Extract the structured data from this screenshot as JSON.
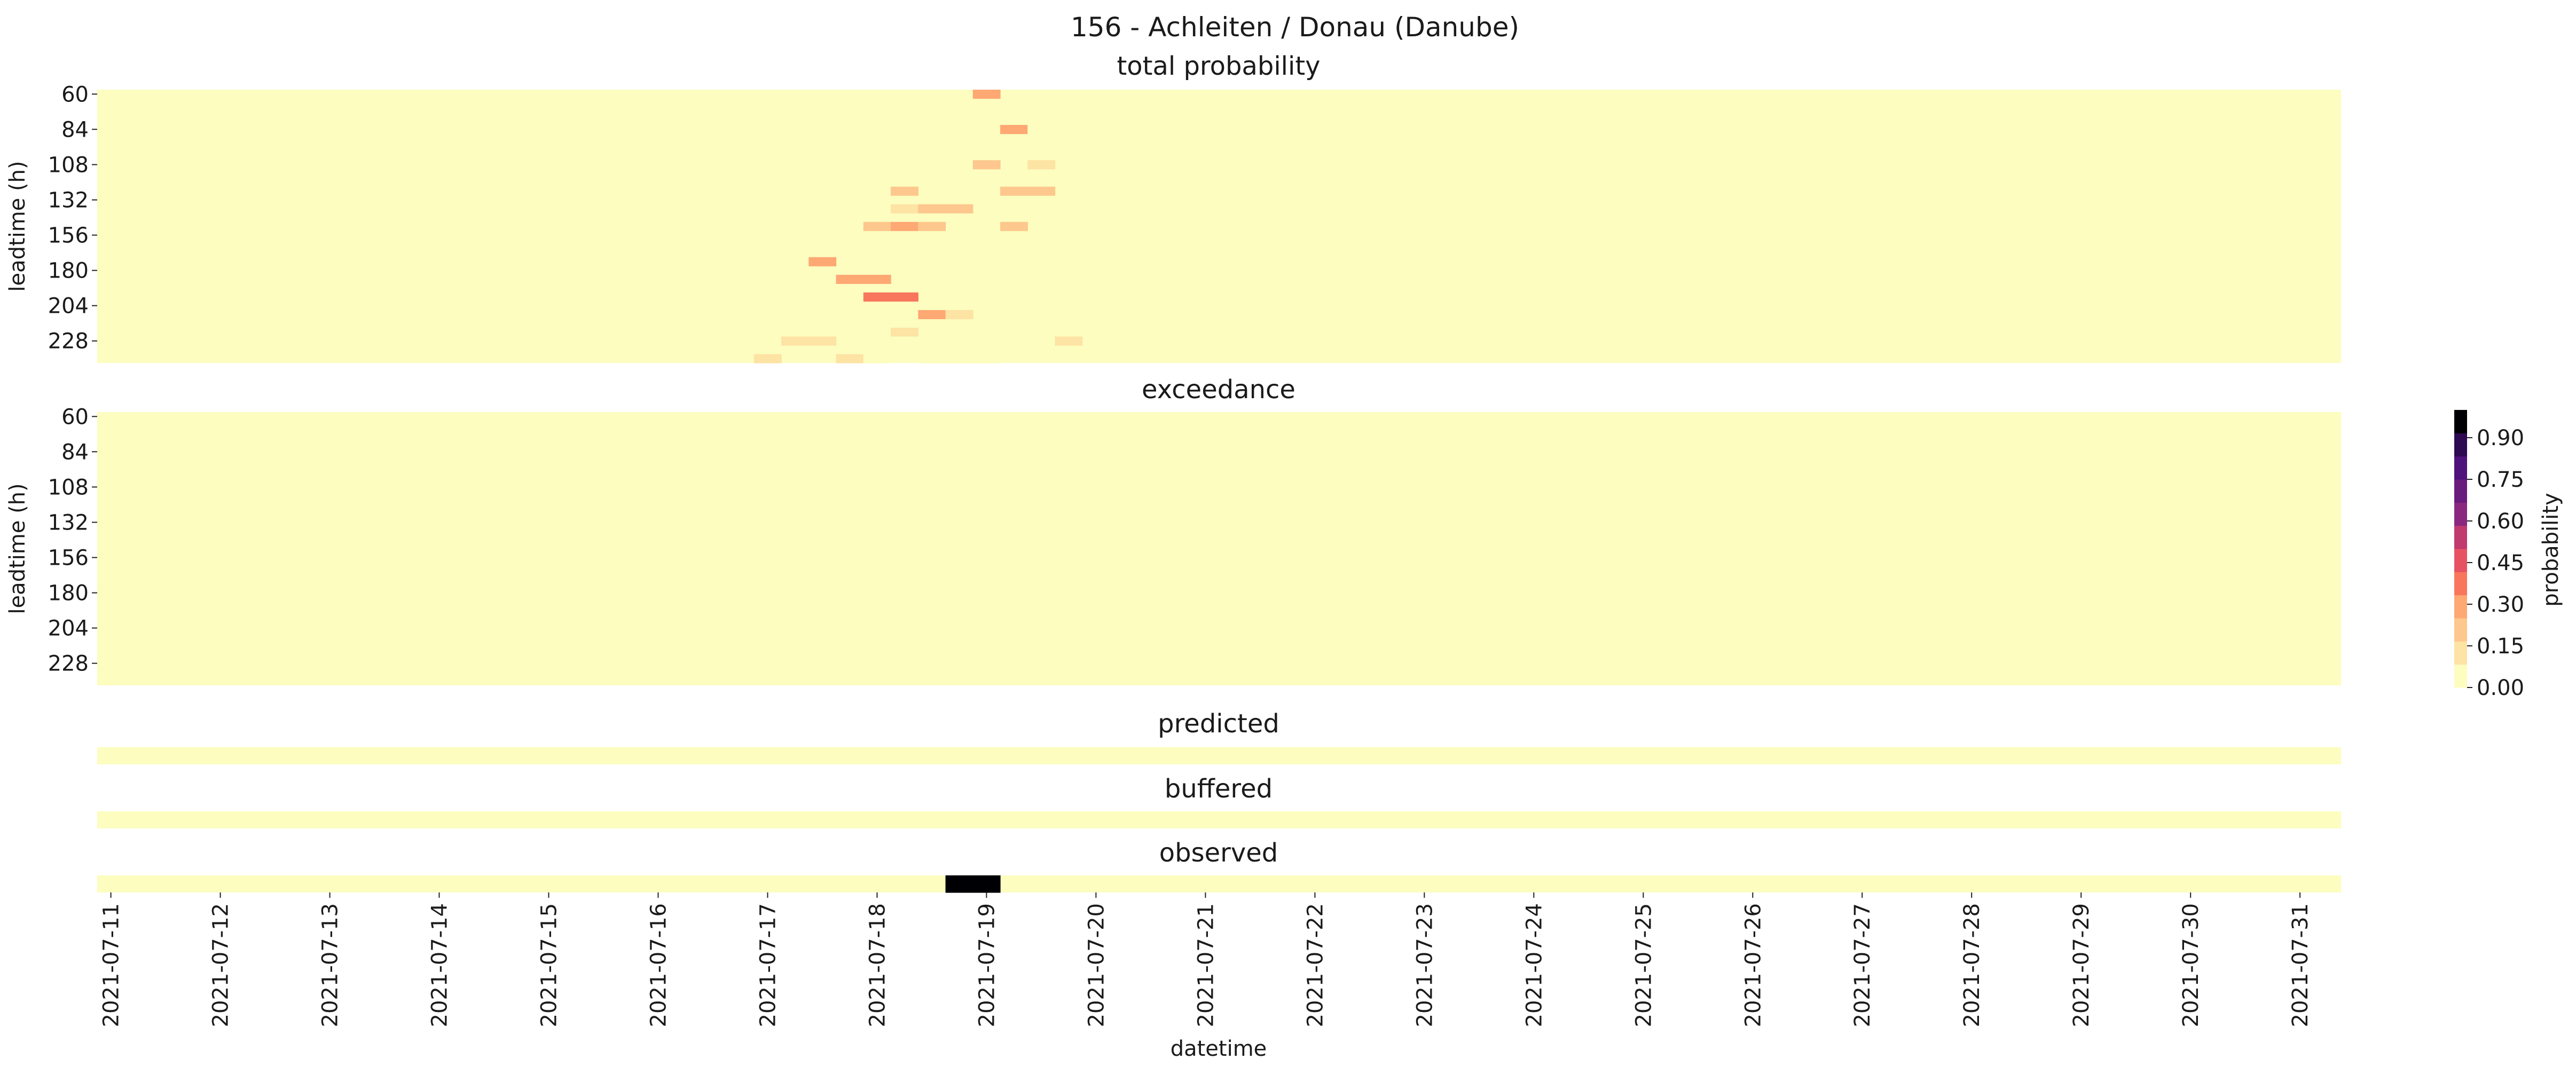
{
  "figure": {
    "title": "156 - Achleiten / Donau (Danube)"
  },
  "chart_data": [
    {
      "type": "heatmap",
      "title": "total probability",
      "ylabel": "leadtime (h)",
      "y_ticks": [
        "60",
        "84",
        "108",
        "132",
        "156",
        "180",
        "204",
        "228"
      ],
      "leadtimes": [
        60,
        66,
        72,
        78,
        84,
        90,
        96,
        102,
        108,
        114,
        120,
        126,
        132,
        138,
        144,
        150,
        156,
        162,
        168,
        174,
        180,
        186,
        192,
        198,
        204,
        210,
        216,
        222,
        228,
        234,
        240
      ],
      "cells": [
        {
          "t": "2021-07-19T00",
          "lt": 60,
          "v": 0.25
        },
        {
          "t": "2021-07-18T12",
          "lt": 84,
          "v": 0.08
        },
        {
          "t": "2021-07-18T18",
          "lt": 84,
          "v": 0.08
        },
        {
          "t": "2021-07-19T06",
          "lt": 84,
          "v": 0.32
        },
        {
          "t": "2021-07-19T12",
          "lt": 84,
          "v": 0.08
        },
        {
          "t": "2021-07-19T06",
          "lt": 96,
          "v": 0.06
        },
        {
          "t": "2021-07-19T00",
          "lt": 108,
          "v": 0.18
        },
        {
          "t": "2021-07-19T12",
          "lt": 108,
          "v": 0.1
        },
        {
          "t": "2021-07-18T06",
          "lt": 126,
          "v": 0.22
        },
        {
          "t": "2021-07-19T06",
          "lt": 126,
          "v": 0.2
        },
        {
          "t": "2021-07-19T12",
          "lt": 126,
          "v": 0.2
        },
        {
          "t": "2021-07-18T06",
          "lt": 138,
          "v": 0.15
        },
        {
          "t": "2021-07-18T12",
          "lt": 138,
          "v": 0.2
        },
        {
          "t": "2021-07-18T18",
          "lt": 138,
          "v": 0.2
        },
        {
          "t": "2021-07-18T00",
          "lt": 150,
          "v": 0.2
        },
        {
          "t": "2021-07-18T06",
          "lt": 150,
          "v": 0.27
        },
        {
          "t": "2021-07-18T12",
          "lt": 150,
          "v": 0.18
        },
        {
          "t": "2021-07-19T06",
          "lt": 150,
          "v": 0.2
        },
        {
          "t": "2021-07-19T18",
          "lt": 162,
          "v": 0.07
        },
        {
          "t": "2021-07-20T00",
          "lt": 162,
          "v": 0.07
        },
        {
          "t": "2021-07-17T12",
          "lt": 174,
          "v": 0.33
        },
        {
          "t": "2021-07-17T18",
          "lt": 186,
          "v": 0.33
        },
        {
          "t": "2021-07-18T00",
          "lt": 186,
          "v": 0.33
        },
        {
          "t": "2021-07-18T00",
          "lt": 198,
          "v": 0.4
        },
        {
          "t": "2021-07-18T06",
          "lt": 198,
          "v": 0.4
        },
        {
          "t": "2021-07-18T00",
          "lt": 210,
          "v": 0.08
        },
        {
          "t": "2021-07-18T06",
          "lt": 210,
          "v": 0.08
        },
        {
          "t": "2021-07-18T12",
          "lt": 210,
          "v": 0.33
        },
        {
          "t": "2021-07-18T18",
          "lt": 210,
          "v": 0.12
        },
        {
          "t": "2021-07-17T18",
          "lt": 222,
          "v": 0.07
        },
        {
          "t": "2021-07-18T06",
          "lt": 222,
          "v": 0.12
        },
        {
          "t": "2021-07-19T06",
          "lt": 222,
          "v": 0.07
        },
        {
          "t": "2021-07-19T12",
          "lt": 222,
          "v": 0.07
        },
        {
          "t": "2021-07-17T06",
          "lt": 228,
          "v": 0.1
        },
        {
          "t": "2021-07-17T12",
          "lt": 228,
          "v": 0.1
        },
        {
          "t": "2021-07-18T00",
          "lt": 228,
          "v": 0.07
        },
        {
          "t": "2021-07-18T06",
          "lt": 228,
          "v": 0.07
        },
        {
          "t": "2021-07-18T12",
          "lt": 228,
          "v": 0.07
        },
        {
          "t": "2021-07-19T18",
          "lt": 228,
          "v": 0.12
        },
        {
          "t": "2021-07-17T00",
          "lt": 240,
          "v": 0.1
        },
        {
          "t": "2021-07-17T18",
          "lt": 240,
          "v": 0.15
        },
        {
          "t": "2021-07-18T00",
          "lt": 240,
          "v": 0.07
        },
        {
          "t": "2021-07-18T12",
          "lt": 240,
          "v": 0.07
        },
        {
          "t": "2021-07-18T18",
          "lt": 240,
          "v": 0.07
        },
        {
          "t": "2021-07-19T00",
          "lt": 240,
          "v": 0.07
        }
      ]
    },
    {
      "type": "heatmap",
      "title": "exceedance",
      "ylabel": "leadtime (h)",
      "y_ticks": [
        "60",
        "84",
        "108",
        "132",
        "156",
        "180",
        "204",
        "228"
      ],
      "leadtimes": [
        60,
        66,
        72,
        78,
        84,
        90,
        96,
        102,
        108,
        114,
        120,
        126,
        132,
        138,
        144,
        150,
        156,
        162,
        168,
        174,
        180,
        186,
        192,
        198,
        204,
        210,
        216,
        222,
        228,
        234,
        240
      ],
      "cells": []
    },
    {
      "type": "heatmap",
      "title": "predicted",
      "cells": []
    },
    {
      "type": "heatmap",
      "title": "buffered",
      "cells": []
    },
    {
      "type": "heatmap",
      "title": "observed",
      "cells": [
        {
          "t": "2021-07-18T18",
          "v": 1.0
        },
        {
          "t": "2021-07-19T00",
          "v": 1.0
        }
      ]
    }
  ],
  "x_axis": {
    "label": "datetime",
    "start": "2021-07-11T00",
    "end": "2021-07-31T06",
    "step_hours": 6,
    "ticks": [
      "2021-07-11",
      "2021-07-12",
      "2021-07-13",
      "2021-07-14",
      "2021-07-15",
      "2021-07-16",
      "2021-07-17",
      "2021-07-18",
      "2021-07-19",
      "2021-07-20",
      "2021-07-21",
      "2021-07-22",
      "2021-07-23",
      "2021-07-24",
      "2021-07-25",
      "2021-07-26",
      "2021-07-27",
      "2021-07-28",
      "2021-07-29",
      "2021-07-30",
      "2021-07-31"
    ]
  },
  "colorbar": {
    "label": "probability",
    "ticks": [
      "0.00",
      "0.15",
      "0.30",
      "0.45",
      "0.60",
      "0.75",
      "0.90"
    ],
    "range": [
      0,
      1
    ],
    "colormap": "magma_r",
    "palette": [
      "#fcfdbf",
      "#fde3a4",
      "#fdc78d",
      "#fea873",
      "#f8765c",
      "#e75263",
      "#c0396f",
      "#8a2880",
      "#6a1b7e",
      "#4f117b",
      "#2d0a52",
      "#000004"
    ]
  }
}
